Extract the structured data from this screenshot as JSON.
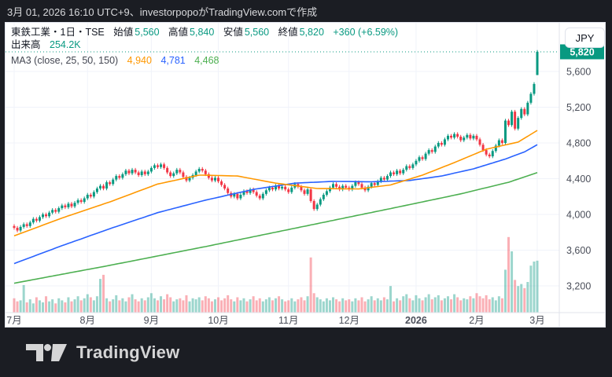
{
  "topbar": {
    "text": "3月 01, 2026 16:10 UTC+9、investorpopoがTradingView.comで作成"
  },
  "legend": {
    "title": "東鉄工業・1日・TSE",
    "ohlc": [
      {
        "label": "始値",
        "value": "5,560"
      },
      {
        "label": "高値",
        "value": "5,840"
      },
      {
        "label": "安値",
        "value": "5,560"
      },
      {
        "label": "終値",
        "value": "5,820"
      }
    ],
    "change": "+360 (+6.59%)",
    "volume_label": "出来高",
    "volume_value": "254.2K",
    "ma_label": "MA3 (close, 25, 50, 150)",
    "ma_values": [
      "4,940",
      "4,781",
      "4,468"
    ]
  },
  "axis": {
    "currency": "JPY",
    "last_price_label": "5,820"
  },
  "footer": {
    "brand": "TradingView"
  },
  "colors": {
    "up": "#089981",
    "down": "#f23645",
    "vol_up": "rgba(8,153,129,0.40)",
    "vol_down": "rgba(242,54,69,0.40)",
    "ma25": "#ff9800",
    "ma50": "#2962ff",
    "ma150": "#4caf50",
    "grid": "#f0f3fa",
    "axis_text": "#4a4e59",
    "separator": "#e0e3eb",
    "accent": "#089981"
  },
  "chart_data": {
    "type": "candlestick",
    "symbol": "東鉄工業",
    "timeframe": "1日",
    "exchange": "TSE",
    "currency": "JPY",
    "y_ticks": [
      {
        "label": "5,600",
        "price": 5600
      },
      {
        "label": "5,200",
        "price": 5200
      },
      {
        "label": "4,800",
        "price": 4800
      },
      {
        "label": "4,400",
        "price": 4400
      },
      {
        "label": "4,000",
        "price": 4000
      },
      {
        "label": "3,600",
        "price": 3600
      },
      {
        "label": "3,200",
        "price": 3200
      }
    ],
    "months": [
      {
        "label": "7月",
        "idx": 0
      },
      {
        "label": "8月",
        "idx": 23
      },
      {
        "label": "9月",
        "idx": 43
      },
      {
        "label": "10月",
        "idx": 64
      },
      {
        "label": "11月",
        "idx": 86
      },
      {
        "label": "12月",
        "idx": 105
      },
      {
        "label": "2026",
        "idx": 126,
        "strong": true
      },
      {
        "label": "2月",
        "idx": 145
      },
      {
        "label": "3月",
        "idx": 164
      }
    ],
    "first_open": 3870,
    "wick_pad": 20,
    "closes": [
      3850,
      3820,
      3860,
      3890,
      3870,
      3910,
      3950,
      3930,
      3970,
      4000,
      3980,
      4020,
      4050,
      4030,
      4070,
      4100,
      4080,
      4120,
      4090,
      4130,
      4160,
      4140,
      4180,
      4220,
      4200,
      4250,
      4290,
      4320,
      4290,
      4360,
      4340,
      4390,
      4430,
      4410,
      4450,
      4490,
      4460,
      4500,
      4470,
      4440,
      4480,
      4450,
      4480,
      4520,
      4550,
      4530,
      4560,
      4520,
      4470,
      4430,
      4460,
      4500,
      4470,
      4420,
      4380,
      4410,
      4440,
      4480,
      4510,
      4490,
      4450,
      4410,
      4380,
      4410,
      4370,
      4330,
      4290,
      4240,
      4200,
      4230,
      4180,
      4220,
      4260,
      4240,
      4280,
      4250,
      4210,
      4180,
      4230,
      4270,
      4300,
      4280,
      4320,
      4290,
      4310,
      4280,
      4250,
      4300,
      4340,
      4310,
      4270,
      4230,
      4280,
      4150,
      4060,
      4110,
      4170,
      4220,
      4260,
      4300,
      4340,
      4310,
      4280,
      4320,
      4300,
      4280,
      4320,
      4360,
      4340,
      4300,
      4270,
      4310,
      4350,
      4330,
      4370,
      4410,
      4390,
      4430,
      4470,
      4450,
      4490,
      4460,
      4500,
      4540,
      4520,
      4560,
      4600,
      4640,
      4620,
      4680,
      4720,
      4700,
      4760,
      4800,
      4780,
      4840,
      4880,
      4860,
      4900,
      4870,
      4830,
      4860,
      4890,
      4850,
      4880,
      4840,
      4780,
      4720,
      4670,
      4650,
      4710,
      4770,
      4830,
      4800,
      5050,
      5000,
      5150,
      4960,
      5080,
      5180,
      5120,
      5250,
      5350,
      5460,
      5820
    ],
    "volumes_k": [
      70,
      55,
      60,
      135,
      50,
      65,
      45,
      75,
      60,
      50,
      80,
      55,
      65,
      45,
      70,
      60,
      50,
      75,
      55,
      65,
      80,
      60,
      70,
      90,
      75,
      60,
      80,
      165,
      185,
      70,
      55,
      65,
      85,
      60,
      70,
      55,
      75,
      90,
      65,
      55,
      70,
      60,
      75,
      95,
      70,
      60,
      80,
      65,
      90,
      75,
      55,
      65,
      70,
      60,
      85,
      55,
      70,
      65,
      75,
      60,
      80,
      70,
      55,
      65,
      75,
      60,
      70,
      85,
      65,
      55,
      75,
      60,
      70,
      55,
      65,
      80,
      60,
      70,
      55,
      65,
      75,
      60,
      70,
      80,
      65,
      55,
      60,
      70,
      55,
      65,
      75,
      60,
      80,
      270,
      95,
      75,
      65,
      55,
      70,
      60,
      75,
      65,
      55,
      70,
      60,
      65,
      55,
      70,
      60,
      75,
      55,
      65,
      80,
      60,
      70,
      60,
      75,
      65,
      130,
      55,
      70,
      60,
      80,
      90,
      70,
      60,
      85,
      70,
      60,
      75,
      90,
      65,
      75,
      85,
      60,
      70,
      80,
      65,
      90,
      75,
      60,
      70,
      65,
      80,
      70,
      95,
      80,
      70,
      85,
      65,
      75,
      60,
      80,
      70,
      210,
      370,
      300,
      160,
      130,
      140,
      120,
      150,
      230,
      250,
      254.2
    ],
    "last_ohlc": {
      "open": 5560,
      "high": 5840,
      "low": 5560,
      "close": 5820
    },
    "last_close": 5820,
    "ma": {
      "ma25_anchors": [
        [
          0,
          3760
        ],
        [
          15,
          3960
        ],
        [
          30,
          4140
        ],
        [
          45,
          4340
        ],
        [
          58,
          4440
        ],
        [
          70,
          4430
        ],
        [
          82,
          4350
        ],
        [
          95,
          4290
        ],
        [
          108,
          4285
        ],
        [
          118,
          4330
        ],
        [
          128,
          4440
        ],
        [
          138,
          4580
        ],
        [
          148,
          4730
        ],
        [
          158,
          4810
        ],
        [
          164,
          4940
        ]
      ],
      "ma50_anchors": [
        [
          0,
          3450
        ],
        [
          15,
          3650
        ],
        [
          30,
          3840
        ],
        [
          45,
          4020
        ],
        [
          60,
          4160
        ],
        [
          75,
          4280
        ],
        [
          88,
          4350
        ],
        [
          100,
          4370
        ],
        [
          112,
          4365
        ],
        [
          124,
          4380
        ],
        [
          134,
          4430
        ],
        [
          144,
          4510
        ],
        [
          154,
          4620
        ],
        [
          160,
          4700
        ],
        [
          164,
          4781
        ]
      ],
      "ma150_anchors": [
        [
          0,
          3230
        ],
        [
          30,
          3430
        ],
        [
          60,
          3640
        ],
        [
          90,
          3860
        ],
        [
          105,
          3970
        ],
        [
          120,
          4080
        ],
        [
          140,
          4230
        ],
        [
          155,
          4360
        ],
        [
          164,
          4468
        ]
      ]
    },
    "legend_note": "出来高 254.2K; MA3 values 4,940 / 4,781 / 4,468"
  }
}
